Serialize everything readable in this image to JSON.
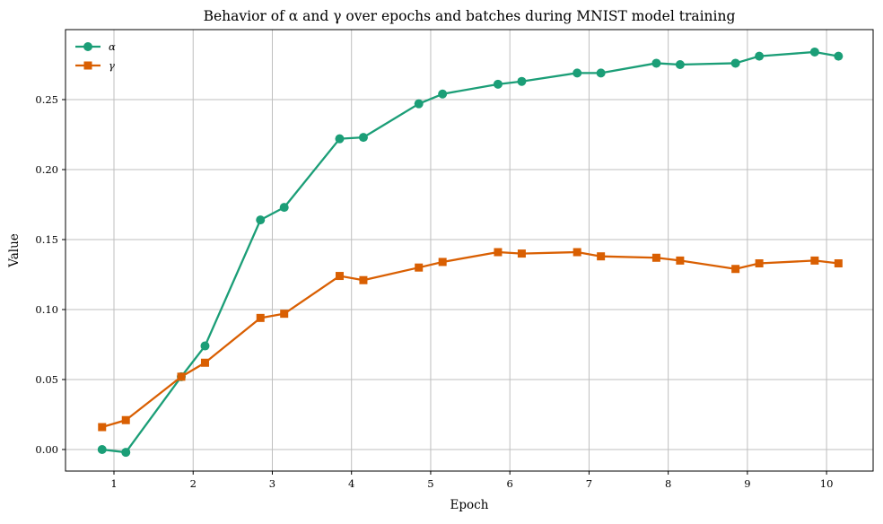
{
  "chart_data": {
    "type": "line",
    "title": "Behavior of α and γ over epochs and batches during MNIST model training",
    "xlabel": "Epoch",
    "ylabel": "Value",
    "x": [
      0.85,
      1.15,
      1.85,
      2.15,
      2.85,
      3.15,
      3.85,
      4.15,
      4.85,
      5.15,
      5.85,
      6.15,
      6.85,
      7.15,
      7.85,
      8.15,
      8.85,
      9.15,
      9.85,
      10.15
    ],
    "series": [
      {
        "name": "α",
        "marker": "circle",
        "color": "#1b9e77",
        "values": [
          0.0,
          -0.002,
          0.052,
          0.074,
          0.164,
          0.173,
          0.222,
          0.223,
          0.247,
          0.254,
          0.261,
          0.263,
          0.269,
          0.269,
          0.276,
          0.275,
          0.276,
          0.281,
          0.284,
          0.281
        ]
      },
      {
        "name": "γ",
        "marker": "square",
        "color": "#d95f02",
        "values": [
          0.016,
          0.021,
          0.052,
          0.062,
          0.094,
          0.097,
          0.124,
          0.121,
          0.13,
          0.134,
          0.141,
          0.14,
          0.141,
          0.138,
          0.137,
          0.135,
          0.129,
          0.133,
          0.135,
          0.133
        ]
      }
    ],
    "xticks": [
      1,
      2,
      3,
      4,
      5,
      6,
      7,
      8,
      9,
      10
    ],
    "yticks": [
      0.0,
      0.05,
      0.1,
      0.15,
      0.2,
      0.25
    ],
    "xlim": [
      0.388,
      10.588
    ],
    "ylim": [
      -0.0154,
      0.3
    ],
    "grid": true,
    "legend_position": "upper left",
    "grid_color": "#bfbfbf",
    "spine_color": "#000000"
  }
}
